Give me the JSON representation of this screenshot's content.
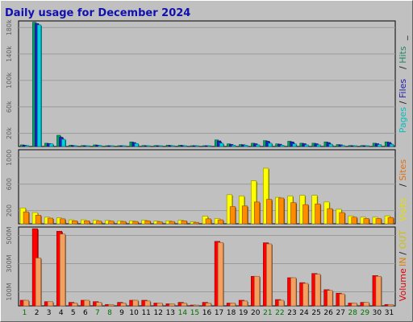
{
  "chart_data": {
    "type": "bar",
    "title": "Daily usage for December 2024",
    "categories": [
      "1",
      "2",
      "3",
      "4",
      "5",
      "6",
      "7",
      "8",
      "9",
      "10",
      "11",
      "12",
      "13",
      "14",
      "15",
      "16",
      "17",
      "18",
      "19",
      "20",
      "21",
      "22",
      "23",
      "24",
      "25",
      "26",
      "27",
      "28",
      "29",
      "30",
      "31"
    ],
    "weekend_days": [
      "1",
      "7",
      "8",
      "14",
      "15",
      "21",
      "22",
      "28",
      "29"
    ],
    "panels": [
      {
        "name": "hits",
        "ylim": [
          0,
          190000
        ],
        "yticks": [
          {
            "value": 20000,
            "label": "20k"
          },
          {
            "value": 60000,
            "label": "60k"
          },
          {
            "value": 100000,
            "label": "100k"
          },
          {
            "value": 140000,
            "label": "140k"
          },
          {
            "value": 180000,
            "label": "180k"
          }
        ],
        "legend": [
          {
            "label": "Pages",
            "color": "#00c0c0"
          },
          {
            "label": "/",
            "color": "#1a1a1a"
          },
          {
            "label": "Files",
            "color": "#2020b0"
          },
          {
            "label": "/",
            "color": "#1a1a1a"
          },
          {
            "label": "Hits",
            "color": "#208860"
          },
          {
            "label": "_",
            "color": "#1a1a1a"
          }
        ],
        "series": [
          {
            "name": "Hits",
            "color": "#00a060",
            "values": [
              2500,
              188000,
              5000,
              17000,
              2000,
              1500,
              2500,
              1000,
              1000,
              7000,
              1500,
              1500,
              2000,
              2000,
              1000,
              1000,
              10000,
              4000,
              3000,
              5000,
              9000,
              4000,
              8000,
              5000,
              5000,
              7000,
              3000,
              1500,
              1500,
              5000,
              7000
            ]
          },
          {
            "name": "Files",
            "color": "#2020c0",
            "values": [
              2000,
              186000,
              4500,
              14000,
              1500,
              1200,
              2000,
              800,
              800,
              6000,
              1200,
              1200,
              1500,
              1500,
              800,
              800,
              8500,
              3200,
              2600,
              4200,
              8000,
              3500,
              7000,
              4300,
              4200,
              6000,
              2500,
              1200,
              1200,
              4300,
              6200
            ]
          },
          {
            "name": "Pages",
            "color": "#00d0e0",
            "values": [
              1500,
              184000,
              4000,
              11000,
              1200,
              1000,
              1700,
              600,
              600,
              4500,
              1000,
              1000,
              1200,
              1200,
              600,
              600,
              5000,
              2000,
              2000,
              2500,
              5000,
              2000,
              4000,
              2500,
              2500,
              3500,
              1500,
              800,
              800,
              3000,
              3500
            ]
          }
        ]
      },
      {
        "name": "visits",
        "ylim": [
          0,
          1120
        ],
        "yticks": [
          {
            "value": 200,
            "label": "200"
          },
          {
            "value": 600,
            "label": "600"
          },
          {
            "value": 1000,
            "label": "1000"
          }
        ],
        "legend": [
          {
            "label": "Visits",
            "color": "#e0e000"
          },
          {
            "label": "/",
            "color": "#1a1a1a"
          },
          {
            "label": "Sites",
            "color": "#e07010"
          }
        ],
        "series": [
          {
            "name": "Visits",
            "color": "#ffff00",
            "values": [
              240,
              170,
              100,
              90,
              60,
              60,
              55,
              50,
              45,
              45,
              55,
              40,
              45,
              55,
              30,
              115,
              80,
              440,
              420,
              650,
              840,
              400,
              420,
              430,
              430,
              330,
              220,
              120,
              100,
              100,
              120
            ]
          },
          {
            "name": "Sites",
            "color": "#ff8c00",
            "values": [
              180,
              130,
              85,
              75,
              45,
              45,
              40,
              40,
              35,
              35,
              45,
              30,
              35,
              45,
              22,
              75,
              60,
              260,
              270,
              330,
              370,
              390,
              320,
              290,
              300,
              230,
              170,
              100,
              80,
              80,
              95
            ]
          }
        ]
      },
      {
        "name": "volume",
        "ylim": [
          0,
          560
        ],
        "yticks": [
          {
            "value": 100,
            "label": "100M"
          },
          {
            "value": 300,
            "label": "300M"
          },
          {
            "value": 500,
            "label": "500M"
          }
        ],
        "legend": [
          {
            "label": "Volume",
            "color": "#e00000"
          },
          {
            "label": "IN",
            "color": "#e08000"
          },
          {
            "label": "/",
            "color": "#1a1a1a"
          },
          {
            "label": "OUT",
            "color": "#d0c000"
          }
        ],
        "series": [
          {
            "name": "Volume",
            "color": "#ff0000",
            "values": [
              40,
              548,
              30,
              530,
              25,
              40,
              30,
              10,
              25,
              40,
              40,
              20,
              15,
              25,
              5,
              25,
              458,
              20,
              40,
              210,
              448,
              45,
              200,
              165,
              230,
              115,
              90,
              20,
              25,
              215,
              10
            ]
          },
          {
            "name": "OUT",
            "color": "#f4a060",
            "values": [
              40,
              340,
              30,
              510,
              20,
              40,
              25,
              10,
              20,
              40,
              35,
              20,
              15,
              20,
              5,
              20,
              450,
              20,
              35,
              210,
              440,
              40,
              200,
              160,
              225,
              110,
              85,
              20,
              25,
              210,
              10
            ]
          }
        ]
      }
    ]
  }
}
